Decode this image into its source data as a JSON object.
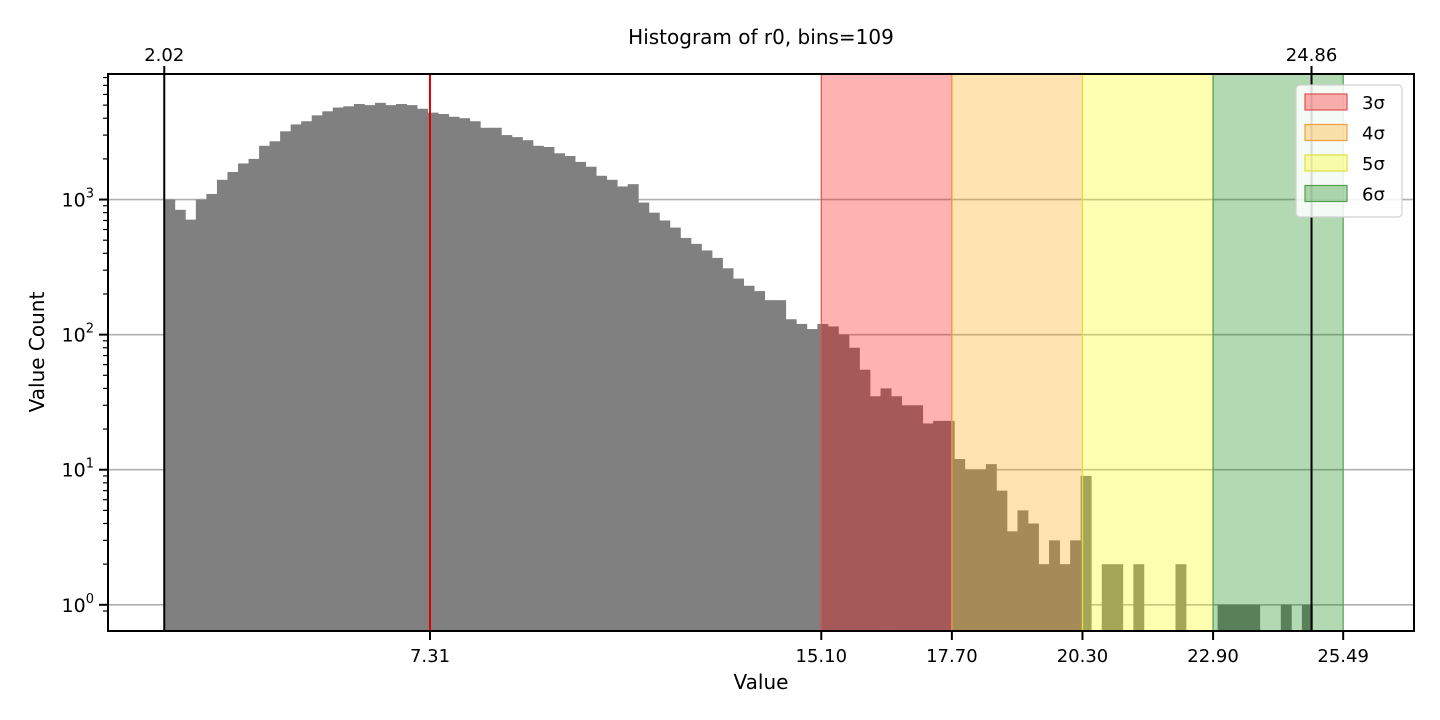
{
  "chart_data": {
    "type": "bar",
    "title": "Histogram of r0, bins=109",
    "xlabel": "Value",
    "ylabel": "Value Count",
    "yscale": "log",
    "xlim": [
      0.9,
      26.9
    ],
    "ylim": [
      0.64,
      8500
    ],
    "grid": "horizontal",
    "bin_start": 2.02,
    "bin_width": 0.2097,
    "counts": [
      1000,
      840,
      710,
      1000,
      1100,
      1400,
      1600,
      1850,
      2000,
      2500,
      2700,
      3200,
      3600,
      3800,
      4200,
      4500,
      4800,
      4900,
      5100,
      5000,
      5200,
      5000,
      5100,
      5000,
      4700,
      4400,
      4300,
      4100,
      4000,
      3800,
      3400,
      3400,
      3000,
      2900,
      2750,
      2500,
      2450,
      2200,
      2100,
      1900,
      1750,
      1500,
      1400,
      1250,
      1300,
      950,
      800,
      700,
      620,
      520,
      470,
      420,
      370,
      310,
      260,
      230,
      210,
      180,
      180,
      130,
      120,
      110,
      120,
      115,
      100,
      80,
      55,
      35,
      40,
      35,
      30,
      30,
      22,
      23,
      23,
      12,
      10,
      10,
      11,
      7,
      3.5,
      5,
      4,
      2,
      3,
      2,
      3,
      9,
      0,
      2,
      2,
      0,
      2,
      0,
      0,
      0,
      2,
      0,
      0,
      0,
      1,
      1,
      1,
      1,
      0,
      0,
      1,
      0,
      1
    ],
    "vlines": [
      {
        "x": 2.02,
        "color": "#000000"
      },
      {
        "x": 7.31,
        "color": "#e00000"
      },
      {
        "x": 24.86,
        "color": "#000000"
      }
    ],
    "top_ticks": [
      {
        "value": 2.02,
        "label": "2.02"
      },
      {
        "value": 24.86,
        "label": "24.86"
      }
    ],
    "x_ticks": [
      {
        "value": 7.31,
        "label": "7.31"
      },
      {
        "value": 15.1,
        "label": "15.10"
      },
      {
        "value": 17.7,
        "label": "17.70"
      },
      {
        "value": 20.3,
        "label": "20.30"
      },
      {
        "value": 22.9,
        "label": "22.90"
      },
      {
        "value": 25.49,
        "label": "25.49"
      }
    ],
    "y_ticks": [
      {
        "value": 1,
        "exp": "0"
      },
      {
        "value": 10,
        "exp": "1"
      },
      {
        "value": 100,
        "exp": "2"
      },
      {
        "value": 1000,
        "exp": "3"
      }
    ],
    "y_tick_base": "10",
    "bands": [
      {
        "name": "3σ",
        "from": 15.1,
        "to": 17.7,
        "color": "#ff0000",
        "edge": "#e05050"
      },
      {
        "name": "4σ",
        "from": 17.7,
        "to": 20.3,
        "color": "#ffa500",
        "edge": "#f0a040"
      },
      {
        "name": "5σ",
        "from": 20.3,
        "to": 22.9,
        "color": "#ffff00",
        "edge": "#e0e040"
      },
      {
        "name": "6σ",
        "from": 22.9,
        "to": 25.49,
        "color": "#008000",
        "edge": "#50a050"
      }
    ],
    "bar_color": "#808080",
    "legend_position": "top-right"
  }
}
